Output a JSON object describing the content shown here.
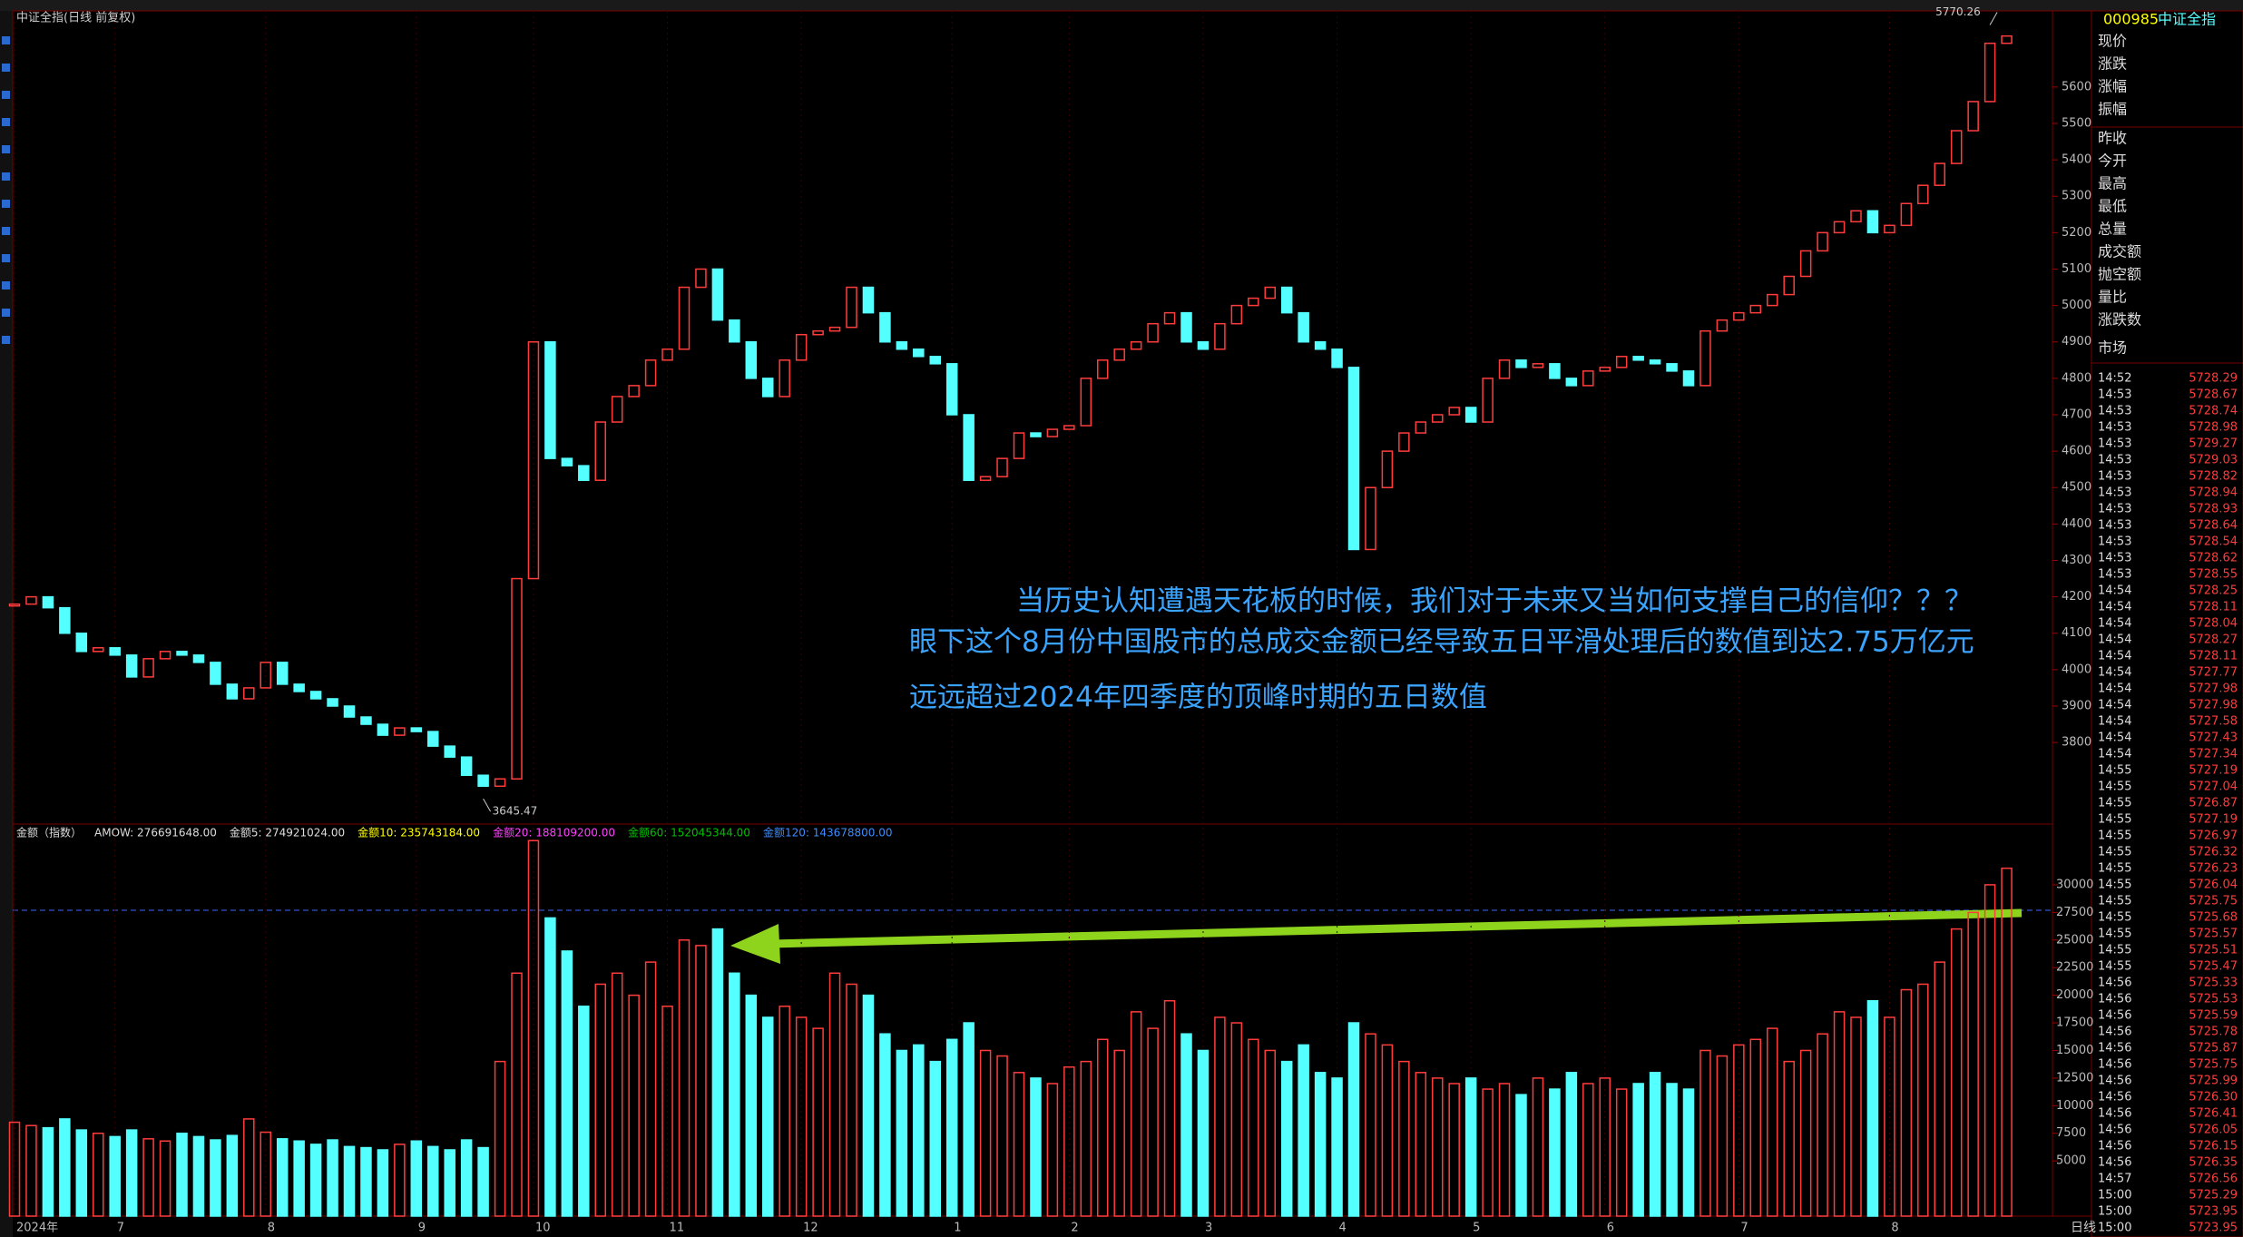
{
  "chart_data": {
    "type": "candlestick",
    "title": "中证全指(日线 前复权)",
    "categories": [
      "2024年",
      null,
      null,
      null,
      null,
      null,
      "7",
      null,
      null,
      null,
      null,
      null,
      null,
      null,
      null,
      "8",
      null,
      null,
      null,
      null,
      null,
      null,
      null,
      null,
      "9",
      null,
      null,
      null,
      null,
      null,
      null,
      "10",
      null,
      null,
      null,
      null,
      null,
      null,
      null,
      "11",
      null,
      null,
      null,
      null,
      null,
      null,
      null,
      "12",
      null,
      null,
      null,
      null,
      null,
      null,
      null,
      null,
      "1",
      null,
      null,
      null,
      null,
      null,
      null,
      "2",
      null,
      null,
      null,
      null,
      null,
      null,
      null,
      "3",
      null,
      null,
      null,
      null,
      null,
      null,
      null,
      "4",
      null,
      null,
      null,
      null,
      null,
      null,
      null,
      "5",
      null,
      null,
      null,
      null,
      null,
      null,
      null,
      "6",
      null,
      null,
      null,
      null,
      null,
      null,
      null,
      "7",
      null,
      null,
      null,
      null,
      null,
      null,
      null,
      null,
      "8",
      null,
      null,
      null,
      null,
      null,
      null,
      null
    ],
    "close": [
      4180,
      4200,
      4170,
      4100,
      4050,
      4060,
      4040,
      3980,
      4030,
      4050,
      4040,
      4020,
      3960,
      3920,
      3950,
      4020,
      3960,
      3940,
      3920,
      3900,
      3870,
      3850,
      3820,
      3840,
      3830,
      3790,
      3760,
      3710,
      3680,
      3700,
      4250,
      4900,
      4580,
      4560,
      4520,
      4680,
      4750,
      4780,
      4850,
      4880,
      5050,
      5100,
      4960,
      4900,
      4800,
      4750,
      4850,
      4920,
      4930,
      4940,
      5050,
      4980,
      4900,
      4880,
      4860,
      4840,
      4700,
      4520,
      4530,
      4580,
      4650,
      4640,
      4660,
      4670,
      4800,
      4850,
      4880,
      4900,
      4950,
      4980,
      4900,
      4880,
      4950,
      5000,
      5020,
      5050,
      4980,
      4900,
      4880,
      4830,
      4330,
      4500,
      4600,
      4650,
      4680,
      4700,
      4720,
      4680,
      4800,
      4850,
      4830,
      4840,
      4800,
      4780,
      4820,
      4830,
      4860,
      4850,
      4840,
      4820,
      4780,
      4930,
      4960,
      4980,
      5000,
      5030,
      5080,
      5150,
      5200,
      5230,
      5260,
      5200,
      5220,
      5280,
      5330,
      5390,
      5480,
      5560,
      5720,
      5740
    ],
    "volume": [
      8500,
      8200,
      8000,
      8800,
      7800,
      7500,
      7200,
      7800,
      7000,
      6800,
      7500,
      7200,
      6900,
      7300,
      8800,
      7600,
      7000,
      6800,
      6500,
      6900,
      6300,
      6200,
      6000,
      6500,
      6800,
      6300,
      6000,
      6900,
      6200,
      14000,
      22000,
      34000,
      27000,
      24000,
      19000,
      21000,
      22000,
      20000,
      23000,
      19000,
      25000,
      24500,
      26000,
      22000,
      20000,
      18000,
      19000,
      18000,
      17000,
      22000,
      21000,
      20000,
      16500,
      15000,
      15500,
      14000,
      16000,
      17500,
      15000,
      14500,
      13000,
      12500,
      12000,
      13500,
      14000,
      16000,
      15000,
      18500,
      17000,
      19500,
      16500,
      15000,
      18000,
      17500,
      16000,
      15000,
      14000,
      15500,
      13000,
      12500,
      17500,
      16500,
      15500,
      14000,
      13000,
      12500,
      12000,
      12500,
      11500,
      12000,
      11000,
      12500,
      11500,
      13000,
      12000,
      12500,
      11500,
      12000,
      13000,
      12000,
      11500,
      15000,
      14500,
      15500,
      16000,
      17000,
      14000,
      15000,
      16500,
      18500,
      18000,
      19500,
      18000,
      20500,
      21000,
      23000,
      26000,
      27500,
      30000,
      31500
    ],
    "up_color": "#ff3c3c",
    "down_color": "#54ffff",
    "ylim": [
      3576,
      5809
    ],
    "yticks": [
      3800,
      3900,
      4000,
      4100,
      4200,
      4300,
      4400,
      4500,
      4600,
      4700,
      4800,
      4900,
      5000,
      5100,
      5200,
      5300,
      5400,
      5500,
      5600
    ],
    "y2lim": [
      0,
      35500
    ],
    "y2ticks": [
      5000,
      7500,
      10000,
      12500,
      15000,
      17500,
      20000,
      22500,
      25000,
      27500,
      30000
    ],
    "low_mark": {
      "index": 28,
      "value": 3645.47
    },
    "high_mark": {
      "index": 118,
      "value": 5770.26
    },
    "volume_header": [
      {
        "text": "金额（指数）",
        "color": "#dddddd"
      },
      {
        "text": "AMOW: 276691648.00",
        "color": "#dddddd"
      },
      {
        "text": "金额5: 274921024.00",
        "color": "#dddddd"
      },
      {
        "text": "金额10: 235743184.00",
        "color": "#ffff00"
      },
      {
        "text": "金额20: 188109200.00",
        "color": "#ff40ff"
      },
      {
        "text": "金额60: 152045344.00",
        "color": "#00c000"
      },
      {
        "text": "金额120: 143678800.00",
        "color": "#3c8cff"
      }
    ],
    "annotations": [
      "当历史认知遭遇天花板的时候，我们对于未来又当如何支撑自己的信仰？？？",
      "眼下这个8月份中国股市的总成交金额已经导致五日平滑处理后的数值到达2.75万亿元",
      "远远超过2024年四季度的顶峰时期的五日数值"
    ],
    "period": "日线"
  },
  "quote_panel": {
    "code": "000985",
    "name": "中证全指",
    "fields": [
      "现价",
      "涨跌",
      "涨幅",
      "振幅",
      "昨收",
      "今开",
      "最高",
      "最低",
      "总量",
      "成交额",
      "抛空额",
      "量比",
      "涨跌数",
      "市场"
    ],
    "ticks": [
      [
        "14:52",
        "5728.29"
      ],
      [
        "14:53",
        "5728.67"
      ],
      [
        "14:53",
        "5728.74"
      ],
      [
        "14:53",
        "5728.98"
      ],
      [
        "14:53",
        "5729.27"
      ],
      [
        "14:53",
        "5729.03"
      ],
      [
        "14:53",
        "5728.82"
      ],
      [
        "14:53",
        "5728.94"
      ],
      [
        "14:53",
        "5728.93"
      ],
      [
        "14:53",
        "5728.64"
      ],
      [
        "14:53",
        "5728.54"
      ],
      [
        "14:53",
        "5728.62"
      ],
      [
        "14:53",
        "5728.55"
      ],
      [
        "14:54",
        "5728.25"
      ],
      [
        "14:54",
        "5728.11"
      ],
      [
        "14:54",
        "5728.04"
      ],
      [
        "14:54",
        "5728.27"
      ],
      [
        "14:54",
        "5728.11"
      ],
      [
        "14:54",
        "5727.77"
      ],
      [
        "14:54",
        "5727.98"
      ],
      [
        "14:54",
        "5727.98"
      ],
      [
        "14:54",
        "5727.58"
      ],
      [
        "14:54",
        "5727.43"
      ],
      [
        "14:54",
        "5727.34"
      ],
      [
        "14:55",
        "5727.19"
      ],
      [
        "14:55",
        "5727.04"
      ],
      [
        "14:55",
        "5726.87"
      ],
      [
        "14:55",
        "5727.19"
      ],
      [
        "14:55",
        "5726.97"
      ],
      [
        "14:55",
        "5726.32"
      ],
      [
        "14:55",
        "5726.23"
      ],
      [
        "14:55",
        "5726.04"
      ],
      [
        "14:55",
        "5725.75"
      ],
      [
        "14:55",
        "5725.68"
      ],
      [
        "14:55",
        "5725.57"
      ],
      [
        "14:55",
        "5725.51"
      ],
      [
        "14:55",
        "5725.47"
      ],
      [
        "14:56",
        "5725.33"
      ],
      [
        "14:56",
        "5725.53"
      ],
      [
        "14:56",
        "5725.59"
      ],
      [
        "14:56",
        "5725.78"
      ],
      [
        "14:56",
        "5725.87"
      ],
      [
        "14:56",
        "5725.75"
      ],
      [
        "14:56",
        "5725.99"
      ],
      [
        "14:56",
        "5726.30"
      ],
      [
        "14:56",
        "5726.41"
      ],
      [
        "14:56",
        "5726.05"
      ],
      [
        "14:56",
        "5726.15"
      ],
      [
        "14:56",
        "5726.35"
      ],
      [
        "14:57",
        "5726.56"
      ],
      [
        "15:00",
        "5725.29"
      ],
      [
        "15:00",
        "5723.95"
      ],
      [
        "15:00",
        "5723.95"
      ]
    ]
  }
}
